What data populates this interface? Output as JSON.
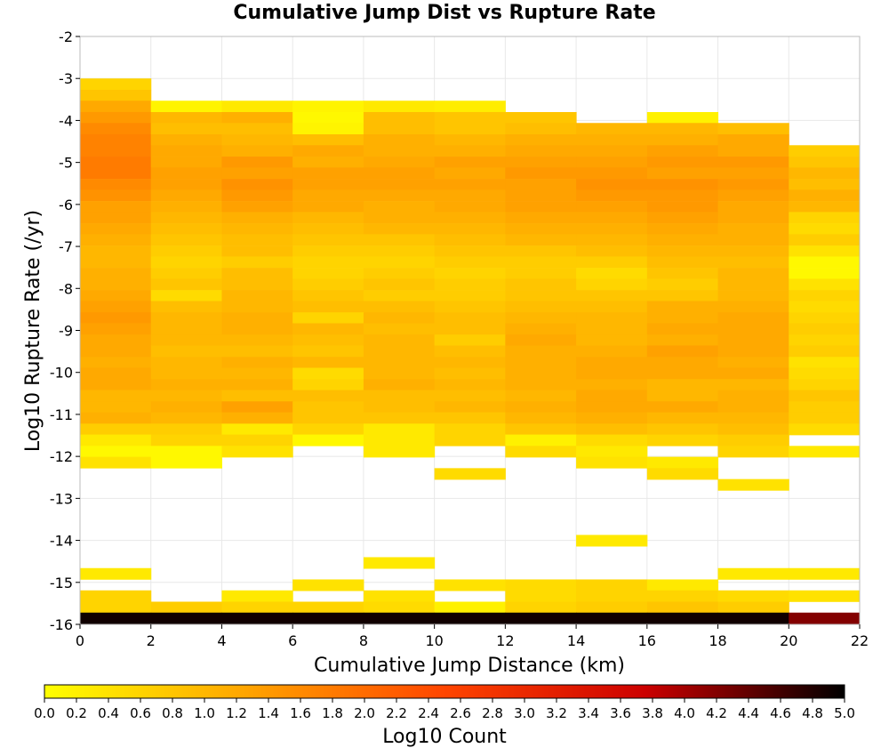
{
  "chart_data": {
    "type": "heatmap",
    "title": "Cumulative Jump Dist vs Rupture Rate",
    "xlabel": "Cumulative Jump Distance (km)",
    "ylabel": "Log10 Rupture Rate (/yr)",
    "colorbar_label": "Log10 Count",
    "xlim": [
      0,
      22
    ],
    "ylim": [
      -16,
      -2
    ],
    "x_ticks": [
      0,
      2,
      4,
      6,
      8,
      10,
      12,
      14,
      16,
      18,
      20,
      22
    ],
    "y_ticks": [
      -2,
      -3,
      -4,
      -5,
      -6,
      -7,
      -8,
      -9,
      -10,
      -11,
      -12,
      -13,
      -14,
      -15,
      -16
    ],
    "colorbar_ticks": [
      0.0,
      0.2,
      0.4,
      0.6,
      0.8,
      1.0,
      1.2,
      1.4,
      1.6,
      1.8,
      2.0,
      2.2,
      2.4,
      2.6,
      2.8,
      3.0,
      3.2,
      3.4,
      3.6,
      3.8,
      4.0,
      4.2,
      4.4,
      4.6,
      4.8,
      5.0
    ],
    "colorbar_range": [
      0,
      5
    ],
    "colormap": [
      "#ffff00",
      "#ffa500",
      "#ff4500",
      "#cc0000",
      "#000000"
    ],
    "grid": true,
    "x_bins": [
      [
        0,
        2
      ],
      [
        2,
        4
      ],
      [
        4,
        6
      ],
      [
        6,
        8
      ],
      [
        8,
        10
      ],
      [
        10,
        12
      ],
      [
        12,
        14
      ],
      [
        14,
        16
      ],
      [
        16,
        18
      ],
      [
        18,
        20
      ],
      [
        20,
        22
      ]
    ],
    "y_bin_width": 0.2656,
    "row_y_starts": [
      -3.0,
      -3.27,
      -3.53,
      -3.8,
      -4.06,
      -4.33,
      -4.59,
      -4.86,
      -5.12,
      -5.39,
      -5.65,
      -5.92,
      -6.18,
      -6.45,
      -6.71,
      -6.98,
      -7.24,
      -7.51,
      -7.77,
      -8.04,
      -8.3,
      -8.57,
      -8.83,
      -9.1,
      -9.36,
      -9.63,
      -9.89,
      -10.16,
      -10.42,
      -10.69,
      -10.95,
      -11.22,
      -11.48,
      -11.75,
      -12.01,
      -12.28,
      -12.54,
      -12.81,
      -13.07,
      -13.34,
      -13.6,
      -13.87,
      -14.13,
      -14.4,
      -14.66,
      -14.93,
      -15.19,
      -15.46,
      -15.72
    ],
    "values": [
      [
        0.6,
        null,
        null,
        null,
        null,
        null,
        null,
        null,
        null,
        null,
        null
      ],
      [
        0.8,
        null,
        null,
        null,
        null,
        null,
        null,
        null,
        null,
        null,
        null
      ],
      [
        1.2,
        0.15,
        0.3,
        0.15,
        0.3,
        0.25,
        null,
        null,
        null,
        null,
        null
      ],
      [
        1.4,
        1.0,
        1.1,
        0.1,
        0.9,
        0.8,
        0.8,
        null,
        0.2,
        null,
        null
      ],
      [
        1.6,
        0.9,
        0.9,
        0.15,
        0.9,
        0.8,
        0.9,
        1.0,
        1.0,
        0.9,
        null
      ],
      [
        1.7,
        1.1,
        1.0,
        0.9,
        1.1,
        1.0,
        1.1,
        1.1,
        1.1,
        1.2,
        null
      ],
      [
        1.7,
        1.2,
        1.1,
        1.2,
        1.1,
        1.1,
        1.2,
        1.2,
        1.3,
        1.2,
        0.7
      ],
      [
        1.8,
        1.2,
        1.4,
        1.1,
        1.2,
        1.3,
        1.3,
        1.3,
        1.4,
        1.4,
        0.8
      ],
      [
        1.8,
        1.3,
        1.3,
        1.3,
        1.3,
        1.2,
        1.4,
        1.4,
        1.3,
        1.3,
        1.0
      ],
      [
        1.6,
        1.3,
        1.5,
        1.3,
        1.3,
        1.3,
        1.3,
        1.5,
        1.5,
        1.4,
        0.9
      ],
      [
        1.5,
        1.2,
        1.4,
        1.2,
        1.2,
        1.2,
        1.3,
        1.4,
        1.4,
        1.3,
        1.1
      ],
      [
        1.3,
        1.1,
        1.3,
        1.2,
        1.1,
        1.2,
        1.3,
        1.3,
        1.4,
        1.2,
        1.0
      ],
      [
        1.3,
        1.0,
        1.1,
        1.0,
        1.1,
        1.1,
        1.2,
        1.2,
        1.3,
        1.2,
        0.6
      ],
      [
        1.2,
        0.9,
        1.0,
        0.9,
        1.0,
        1.0,
        1.1,
        1.1,
        1.2,
        1.1,
        0.5
      ],
      [
        1.1,
        0.8,
        0.9,
        0.8,
        0.8,
        0.9,
        1.0,
        1.0,
        1.1,
        1.1,
        0.7
      ],
      [
        1.0,
        0.7,
        0.9,
        0.7,
        0.7,
        0.8,
        0.8,
        0.9,
        1.0,
        1.0,
        0.4
      ],
      [
        1.0,
        0.6,
        0.7,
        0.6,
        0.6,
        0.7,
        0.7,
        0.7,
        0.9,
        0.9,
        0.1
      ],
      [
        1.1,
        0.7,
        0.9,
        0.6,
        0.7,
        0.6,
        0.7,
        0.5,
        0.8,
        1.0,
        0.1
      ],
      [
        1.1,
        0.8,
        0.9,
        0.7,
        0.8,
        0.7,
        0.8,
        0.6,
        0.7,
        1.0,
        0.4
      ],
      [
        1.2,
        0.5,
        1.0,
        0.8,
        0.7,
        0.7,
        0.8,
        0.8,
        0.8,
        1.0,
        0.6
      ],
      [
        1.3,
        0.9,
        1.0,
        0.9,
        0.9,
        0.8,
        0.9,
        0.9,
        1.1,
        1.1,
        0.5
      ],
      [
        1.4,
        1.0,
        1.1,
        0.6,
        1.0,
        0.9,
        1.0,
        1.0,
        1.1,
        1.2,
        0.6
      ],
      [
        1.3,
        1.0,
        1.1,
        1.0,
        0.9,
        0.9,
        1.1,
        1.0,
        1.2,
        1.2,
        0.7
      ],
      [
        1.2,
        1.0,
        1.0,
        0.9,
        1.0,
        0.7,
        1.2,
        1.0,
        1.1,
        1.2,
        0.6
      ],
      [
        1.2,
        0.9,
        0.9,
        0.8,
        1.0,
        0.9,
        1.1,
        1.1,
        1.3,
        1.2,
        0.7
      ],
      [
        1.1,
        1.0,
        1.1,
        1.0,
        1.0,
        1.0,
        1.1,
        1.2,
        1.2,
        1.1,
        0.4
      ],
      [
        1.2,
        1.0,
        1.0,
        0.5,
        1.0,
        0.9,
        1.1,
        1.2,
        1.2,
        1.2,
        0.5
      ],
      [
        1.2,
        1.1,
        1.1,
        0.6,
        1.1,
        1.0,
        1.1,
        1.1,
        1.0,
        1.0,
        0.6
      ],
      [
        1.0,
        1.0,
        0.9,
        0.9,
        0.9,
        0.9,
        1.0,
        1.2,
        1.0,
        1.1,
        0.8
      ],
      [
        1.0,
        1.1,
        1.3,
        0.8,
        0.9,
        1.0,
        1.1,
        1.2,
        1.2,
        1.1,
        0.7
      ],
      [
        1.1,
        1.0,
        1.1,
        0.8,
        0.8,
        0.8,
        1.0,
        1.1,
        1.0,
        1.0,
        0.7
      ],
      [
        0.7,
        0.7,
        0.3,
        0.6,
        0.3,
        0.6,
        0.8,
        0.9,
        0.8,
        0.9,
        0.5
      ],
      [
        0.3,
        0.6,
        0.6,
        0.1,
        0.3,
        0.6,
        0.2,
        0.5,
        0.6,
        0.7,
        null
      ],
      [
        0.1,
        0.1,
        0.4,
        null,
        0.3,
        null,
        0.5,
        0.3,
        null,
        0.6,
        0.3
      ],
      [
        0.4,
        0.1,
        null,
        null,
        null,
        null,
        null,
        0.4,
        0.3,
        null,
        null
      ],
      [
        null,
        null,
        null,
        null,
        null,
        0.5,
        null,
        null,
        0.5,
        null,
        null
      ],
      [
        null,
        null,
        null,
        null,
        null,
        null,
        null,
        null,
        null,
        0.4,
        null
      ],
      [
        null,
        null,
        null,
        null,
        null,
        null,
        null,
        null,
        null,
        null,
        null
      ],
      [
        null,
        null,
        null,
        null,
        null,
        null,
        null,
        null,
        null,
        null,
        null
      ],
      [
        null,
        null,
        null,
        null,
        null,
        null,
        null,
        null,
        null,
        null,
        null
      ],
      [
        null,
        null,
        null,
        null,
        null,
        null,
        null,
        null,
        null,
        null,
        null
      ],
      [
        null,
        null,
        null,
        null,
        null,
        null,
        null,
        0.3,
        null,
        null,
        null
      ],
      [
        null,
        null,
        null,
        null,
        null,
        null,
        null,
        null,
        null,
        null,
        null
      ],
      [
        null,
        null,
        null,
        null,
        0.3,
        null,
        null,
        null,
        null,
        null,
        null
      ],
      [
        0.3,
        null,
        null,
        null,
        null,
        null,
        null,
        null,
        null,
        0.3,
        0.3
      ],
      [
        null,
        null,
        null,
        0.4,
        null,
        0.4,
        0.5,
        0.6,
        0.3,
        null,
        null
      ],
      [
        0.6,
        null,
        0.3,
        null,
        0.4,
        null,
        0.5,
        0.6,
        0.6,
        0.5,
        0.4
      ],
      [
        0.6,
        0.7,
        0.6,
        0.6,
        0.5,
        0.2,
        0.6,
        0.7,
        0.8,
        0.7,
        null
      ],
      [
        4.9,
        4.9,
        4.9,
        4.9,
        4.9,
        4.9,
        4.9,
        4.9,
        4.9,
        4.9,
        4.2
      ]
    ]
  }
}
